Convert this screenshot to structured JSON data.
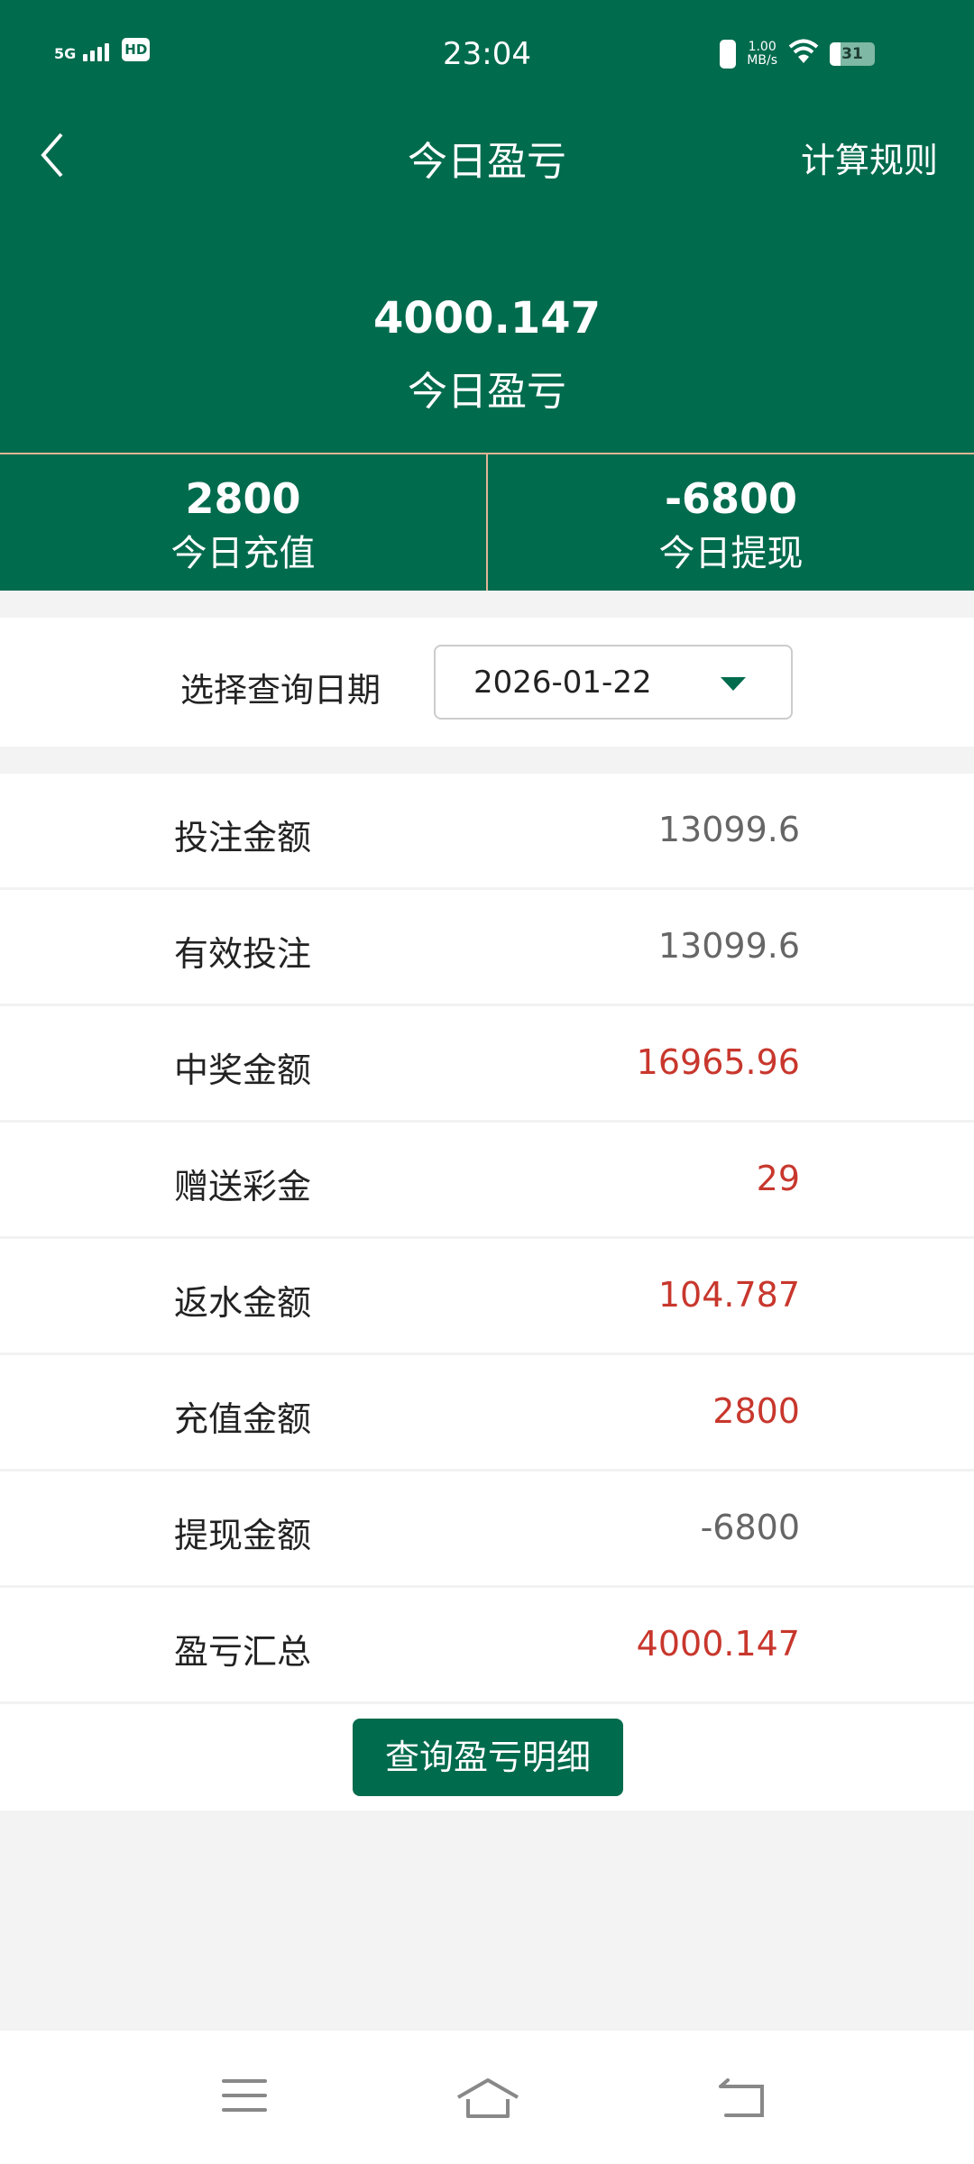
{
  "status_bar": {
    "network": "5G",
    "hd": "HD",
    "time": "23:04",
    "speed": "1.00",
    "speed_unit": "MB/s",
    "battery": "31"
  },
  "header": {
    "title": "今日盈亏",
    "rules_label": "计算规则"
  },
  "summary": {
    "value": "4000.147",
    "label": "今日盈亏"
  },
  "stats": [
    {
      "value": "2800",
      "label": "今日充值"
    },
    {
      "value": "-6800",
      "label": "今日提现"
    }
  ],
  "date_filter": {
    "label": "选择查询日期",
    "value": "2026-01-22"
  },
  "rows": [
    {
      "label": "投注金额",
      "value": "13099.6",
      "color": "#666666"
    },
    {
      "label": "有效投注",
      "value": "13099.6",
      "color": "#666666"
    },
    {
      "label": "中奖金额",
      "value": "16965.96",
      "color": "#c8372d"
    },
    {
      "label": "赠送彩金",
      "value": "29",
      "color": "#c8372d"
    },
    {
      "label": "返水金额",
      "value": "104.787",
      "color": "#c8372d"
    },
    {
      "label": "充值金额",
      "value": "2800",
      "color": "#c8372d"
    },
    {
      "label": "提现金额",
      "value": "-6800",
      "color": "#666666"
    },
    {
      "label": "盈亏汇总",
      "value": "4000.147",
      "color": "#c8372d"
    }
  ],
  "detail_button": "查询盈亏明细",
  "colors": {
    "brand": "#016b4d",
    "positive": "#c8372d",
    "neutral": "#666666"
  }
}
